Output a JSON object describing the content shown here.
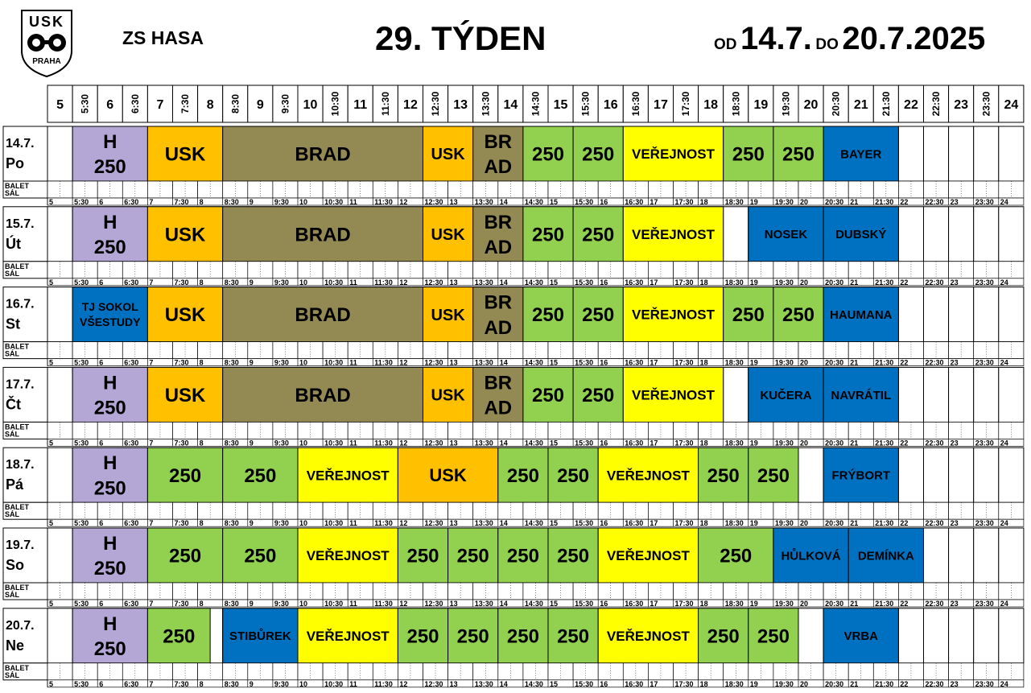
{
  "logo": {
    "top_text": "USK",
    "bottom_text": "PRAHA"
  },
  "header": {
    "rink": "ZS HASA",
    "week": "29. TÝDEN",
    "from_label": "OD",
    "from_date": "14.7.",
    "to_label": "DO",
    "to_date": "20.7.2025"
  },
  "timeline": {
    "start_hour": 5,
    "end_hour": 24.5,
    "slot_labels": [
      "5",
      "5:30",
      "6",
      "6:30",
      "7",
      "7:30",
      "8",
      "8:30",
      "9",
      "9:30",
      "10",
      "10:30",
      "11",
      "11:30",
      "12",
      "12:30",
      "13",
      "13:30",
      "14",
      "14:30",
      "15",
      "15:30",
      "16",
      "16:30",
      "17",
      "17:30",
      "18",
      "18:30",
      "19",
      "19:30",
      "20",
      "20:30",
      "21",
      "21:30",
      "22",
      "22:30",
      "23",
      "23:30",
      "24"
    ]
  },
  "balet_label": [
    "BALET",
    "SÁL"
  ],
  "colors": {
    "lavender": "#b4a7d6",
    "orange": "#ffc000",
    "olive": "#938953",
    "green": "#92d050",
    "yellow": "#ffff00",
    "blue": "#0070c0"
  },
  "days": [
    {
      "date": "14.7.",
      "name": "Po",
      "blocks": [
        {
          "start": 5.5,
          "end": 7,
          "color": "lavender",
          "lines": [
            "H",
            "250"
          ],
          "size": 24
        },
        {
          "start": 7,
          "end": 8.5,
          "color": "orange",
          "lines": [
            "USK"
          ],
          "size": 24
        },
        {
          "start": 8.5,
          "end": 12.5,
          "color": "olive",
          "lines": [
            "BRAD"
          ],
          "size": 24
        },
        {
          "start": 12.5,
          "end": 13.5,
          "color": "orange",
          "lines": [
            "USK"
          ],
          "size": 20
        },
        {
          "start": 13.5,
          "end": 14.5,
          "color": "olive",
          "lines": [
            "BR",
            "AD"
          ],
          "size": 24
        },
        {
          "start": 14.5,
          "end": 15.5,
          "color": "green",
          "lines": [
            "250"
          ],
          "size": 24
        },
        {
          "start": 15.5,
          "end": 16.5,
          "color": "green",
          "lines": [
            "250"
          ],
          "size": 24
        },
        {
          "start": 16.5,
          "end": 18.5,
          "color": "yellow",
          "lines": [
            "VEŘEJNOST"
          ],
          "size": 17
        },
        {
          "start": 18.5,
          "end": 19.5,
          "color": "green",
          "lines": [
            "250"
          ],
          "size": 24
        },
        {
          "start": 19.5,
          "end": 20.5,
          "color": "green",
          "lines": [
            "250"
          ],
          "size": 24
        },
        {
          "start": 20.5,
          "end": 22,
          "color": "blue",
          "lines": [
            "BAYER"
          ],
          "size": 15
        }
      ]
    },
    {
      "date": "15.7.",
      "name": "Út",
      "blocks": [
        {
          "start": 5.5,
          "end": 7,
          "color": "lavender",
          "lines": [
            "H",
            "250"
          ],
          "size": 24
        },
        {
          "start": 7,
          "end": 8.5,
          "color": "orange",
          "lines": [
            "USK"
          ],
          "size": 24
        },
        {
          "start": 8.5,
          "end": 12.5,
          "color": "olive",
          "lines": [
            "BRAD"
          ],
          "size": 24
        },
        {
          "start": 12.5,
          "end": 13.5,
          "color": "orange",
          "lines": [
            "USK"
          ],
          "size": 20
        },
        {
          "start": 13.5,
          "end": 14.5,
          "color": "olive",
          "lines": [
            "BR",
            "AD"
          ],
          "size": 24
        },
        {
          "start": 14.5,
          "end": 15.5,
          "color": "green",
          "lines": [
            "250"
          ],
          "size": 24
        },
        {
          "start": 15.5,
          "end": 16.5,
          "color": "green",
          "lines": [
            "250"
          ],
          "size": 24
        },
        {
          "start": 16.5,
          "end": 18.5,
          "color": "yellow",
          "lines": [
            "VEŘEJNOST"
          ],
          "size": 17
        },
        {
          "start": 19,
          "end": 20.5,
          "color": "blue",
          "lines": [
            "NOSEK"
          ],
          "size": 15
        },
        {
          "start": 20.5,
          "end": 22,
          "color": "blue",
          "lines": [
            "DUBSKÝ"
          ],
          "size": 15
        }
      ]
    },
    {
      "date": "16.7.",
      "name": "St",
      "blocks": [
        {
          "start": 5.5,
          "end": 7,
          "color": "blue",
          "lines": [
            "TJ SOKOL",
            "VŠESTUDY"
          ],
          "size": 14
        },
        {
          "start": 7,
          "end": 8.5,
          "color": "orange",
          "lines": [
            "USK"
          ],
          "size": 24
        },
        {
          "start": 8.5,
          "end": 12.5,
          "color": "olive",
          "lines": [
            "BRAD"
          ],
          "size": 24
        },
        {
          "start": 12.5,
          "end": 13.5,
          "color": "orange",
          "lines": [
            "USK"
          ],
          "size": 20
        },
        {
          "start": 13.5,
          "end": 14.5,
          "color": "olive",
          "lines": [
            "BR",
            "AD"
          ],
          "size": 24
        },
        {
          "start": 14.5,
          "end": 15.5,
          "color": "green",
          "lines": [
            "250"
          ],
          "size": 24
        },
        {
          "start": 15.5,
          "end": 16.5,
          "color": "green",
          "lines": [
            "250"
          ],
          "size": 24
        },
        {
          "start": 16.5,
          "end": 18.5,
          "color": "yellow",
          "lines": [
            "VEŘEJNOST"
          ],
          "size": 17
        },
        {
          "start": 18.5,
          "end": 19.5,
          "color": "green",
          "lines": [
            "250"
          ],
          "size": 24
        },
        {
          "start": 19.5,
          "end": 20.5,
          "color": "green",
          "lines": [
            "250"
          ],
          "size": 24
        },
        {
          "start": 20.5,
          "end": 22,
          "color": "blue",
          "lines": [
            "HAUMANA"
          ],
          "size": 15
        }
      ]
    },
    {
      "date": "17.7.",
      "name": "Čt",
      "blocks": [
        {
          "start": 5.5,
          "end": 7,
          "color": "lavender",
          "lines": [
            "H",
            "250"
          ],
          "size": 24
        },
        {
          "start": 7,
          "end": 8.5,
          "color": "orange",
          "lines": [
            "USK"
          ],
          "size": 24
        },
        {
          "start": 8.5,
          "end": 12.5,
          "color": "olive",
          "lines": [
            "BRAD"
          ],
          "size": 24
        },
        {
          "start": 12.5,
          "end": 13.5,
          "color": "orange",
          "lines": [
            "USK"
          ],
          "size": 20
        },
        {
          "start": 13.5,
          "end": 14.5,
          "color": "olive",
          "lines": [
            "BR",
            "AD"
          ],
          "size": 24
        },
        {
          "start": 14.5,
          "end": 15.5,
          "color": "green",
          "lines": [
            "250"
          ],
          "size": 24
        },
        {
          "start": 15.5,
          "end": 16.5,
          "color": "green",
          "lines": [
            "250"
          ],
          "size": 24
        },
        {
          "start": 16.5,
          "end": 18.5,
          "color": "yellow",
          "lines": [
            "VEŘEJNOST"
          ],
          "size": 17
        },
        {
          "start": 19,
          "end": 20.5,
          "color": "blue",
          "lines": [
            "KUČERA"
          ],
          "size": 15
        },
        {
          "start": 20.5,
          "end": 22,
          "color": "blue",
          "lines": [
            "NAVRÁTIL"
          ],
          "size": 15
        }
      ]
    },
    {
      "date": "18.7.",
      "name": "Pá",
      "blocks": [
        {
          "start": 5.5,
          "end": 7,
          "color": "lavender",
          "lines": [
            "H",
            "250"
          ],
          "size": 24
        },
        {
          "start": 7,
          "end": 8.5,
          "color": "green",
          "lines": [
            "250"
          ],
          "size": 24
        },
        {
          "start": 8.5,
          "end": 10,
          "color": "green",
          "lines": [
            "250"
          ],
          "size": 24
        },
        {
          "start": 10,
          "end": 12,
          "color": "yellow",
          "lines": [
            "VEŘEJNOST"
          ],
          "size": 17
        },
        {
          "start": 12,
          "end": 14,
          "color": "orange",
          "lines": [
            "USK"
          ],
          "size": 22
        },
        {
          "start": 14,
          "end": 15,
          "color": "green",
          "lines": [
            "250"
          ],
          "size": 24
        },
        {
          "start": 15,
          "end": 16,
          "color": "green",
          "lines": [
            "250"
          ],
          "size": 24
        },
        {
          "start": 16,
          "end": 18,
          "color": "yellow",
          "lines": [
            "VEŘEJNOST"
          ],
          "size": 17
        },
        {
          "start": 18,
          "end": 19,
          "color": "green",
          "lines": [
            "250"
          ],
          "size": 24
        },
        {
          "start": 19,
          "end": 20,
          "color": "green",
          "lines": [
            "250"
          ],
          "size": 24
        },
        {
          "start": 20.5,
          "end": 22,
          "color": "blue",
          "lines": [
            "FRÝBORT"
          ],
          "size": 15
        }
      ]
    },
    {
      "date": "19.7.",
      "name": "So",
      "blocks": [
        {
          "start": 5.5,
          "end": 7,
          "color": "lavender",
          "lines": [
            "H",
            "250"
          ],
          "size": 24
        },
        {
          "start": 7,
          "end": 8.5,
          "color": "green",
          "lines": [
            "250"
          ],
          "size": 24
        },
        {
          "start": 8.5,
          "end": 10,
          "color": "green",
          "lines": [
            "250"
          ],
          "size": 24
        },
        {
          "start": 10,
          "end": 12,
          "color": "yellow",
          "lines": [
            "VEŘEJNOST"
          ],
          "size": 17
        },
        {
          "start": 12,
          "end": 13,
          "color": "green",
          "lines": [
            "250"
          ],
          "size": 24
        },
        {
          "start": 13,
          "end": 14,
          "color": "green",
          "lines": [
            "250"
          ],
          "size": 24
        },
        {
          "start": 14,
          "end": 15,
          "color": "green",
          "lines": [
            "250"
          ],
          "size": 24
        },
        {
          "start": 15,
          "end": 16,
          "color": "green",
          "lines": [
            "250"
          ],
          "size": 24
        },
        {
          "start": 16,
          "end": 18,
          "color": "yellow",
          "lines": [
            "VEŘEJNOST"
          ],
          "size": 17
        },
        {
          "start": 18,
          "end": 19.5,
          "color": "green",
          "lines": [
            "250"
          ],
          "size": 24
        },
        {
          "start": 19.5,
          "end": 21,
          "color": "blue",
          "lines": [
            "HŮLKOVÁ"
          ],
          "size": 15
        },
        {
          "start": 21,
          "end": 22.5,
          "color": "blue",
          "lines": [
            "DEMÍNKA"
          ],
          "size": 15
        }
      ]
    },
    {
      "date": "20.7.",
      "name": "Ne",
      "blocks": [
        {
          "start": 5.5,
          "end": 7,
          "color": "lavender",
          "lines": [
            "H",
            "250"
          ],
          "size": 24
        },
        {
          "start": 7,
          "end": 8.25,
          "color": "green",
          "lines": [
            "250"
          ],
          "size": 24
        },
        {
          "start": 8.5,
          "end": 10,
          "color": "blue",
          "lines": [
            "STIBŮREK"
          ],
          "size": 15
        },
        {
          "start": 10,
          "end": 12,
          "color": "yellow",
          "lines": [
            "VEŘEJNOST"
          ],
          "size": 17
        },
        {
          "start": 12,
          "end": 13,
          "color": "green",
          "lines": [
            "250"
          ],
          "size": 24
        },
        {
          "start": 13,
          "end": 14,
          "color": "green",
          "lines": [
            "250"
          ],
          "size": 24
        },
        {
          "start": 14,
          "end": 15,
          "color": "green",
          "lines": [
            "250"
          ],
          "size": 24
        },
        {
          "start": 15,
          "end": 16,
          "color": "green",
          "lines": [
            "250"
          ],
          "size": 24
        },
        {
          "start": 16,
          "end": 18,
          "color": "yellow",
          "lines": [
            "VEŘEJNOST"
          ],
          "size": 17
        },
        {
          "start": 18,
          "end": 19,
          "color": "green",
          "lines": [
            "250"
          ],
          "size": 24
        },
        {
          "start": 19,
          "end": 20,
          "color": "green",
          "lines": [
            "250"
          ],
          "size": 24
        },
        {
          "start": 20.5,
          "end": 22,
          "color": "blue",
          "lines": [
            "VRBA"
          ],
          "size": 15
        }
      ]
    }
  ]
}
